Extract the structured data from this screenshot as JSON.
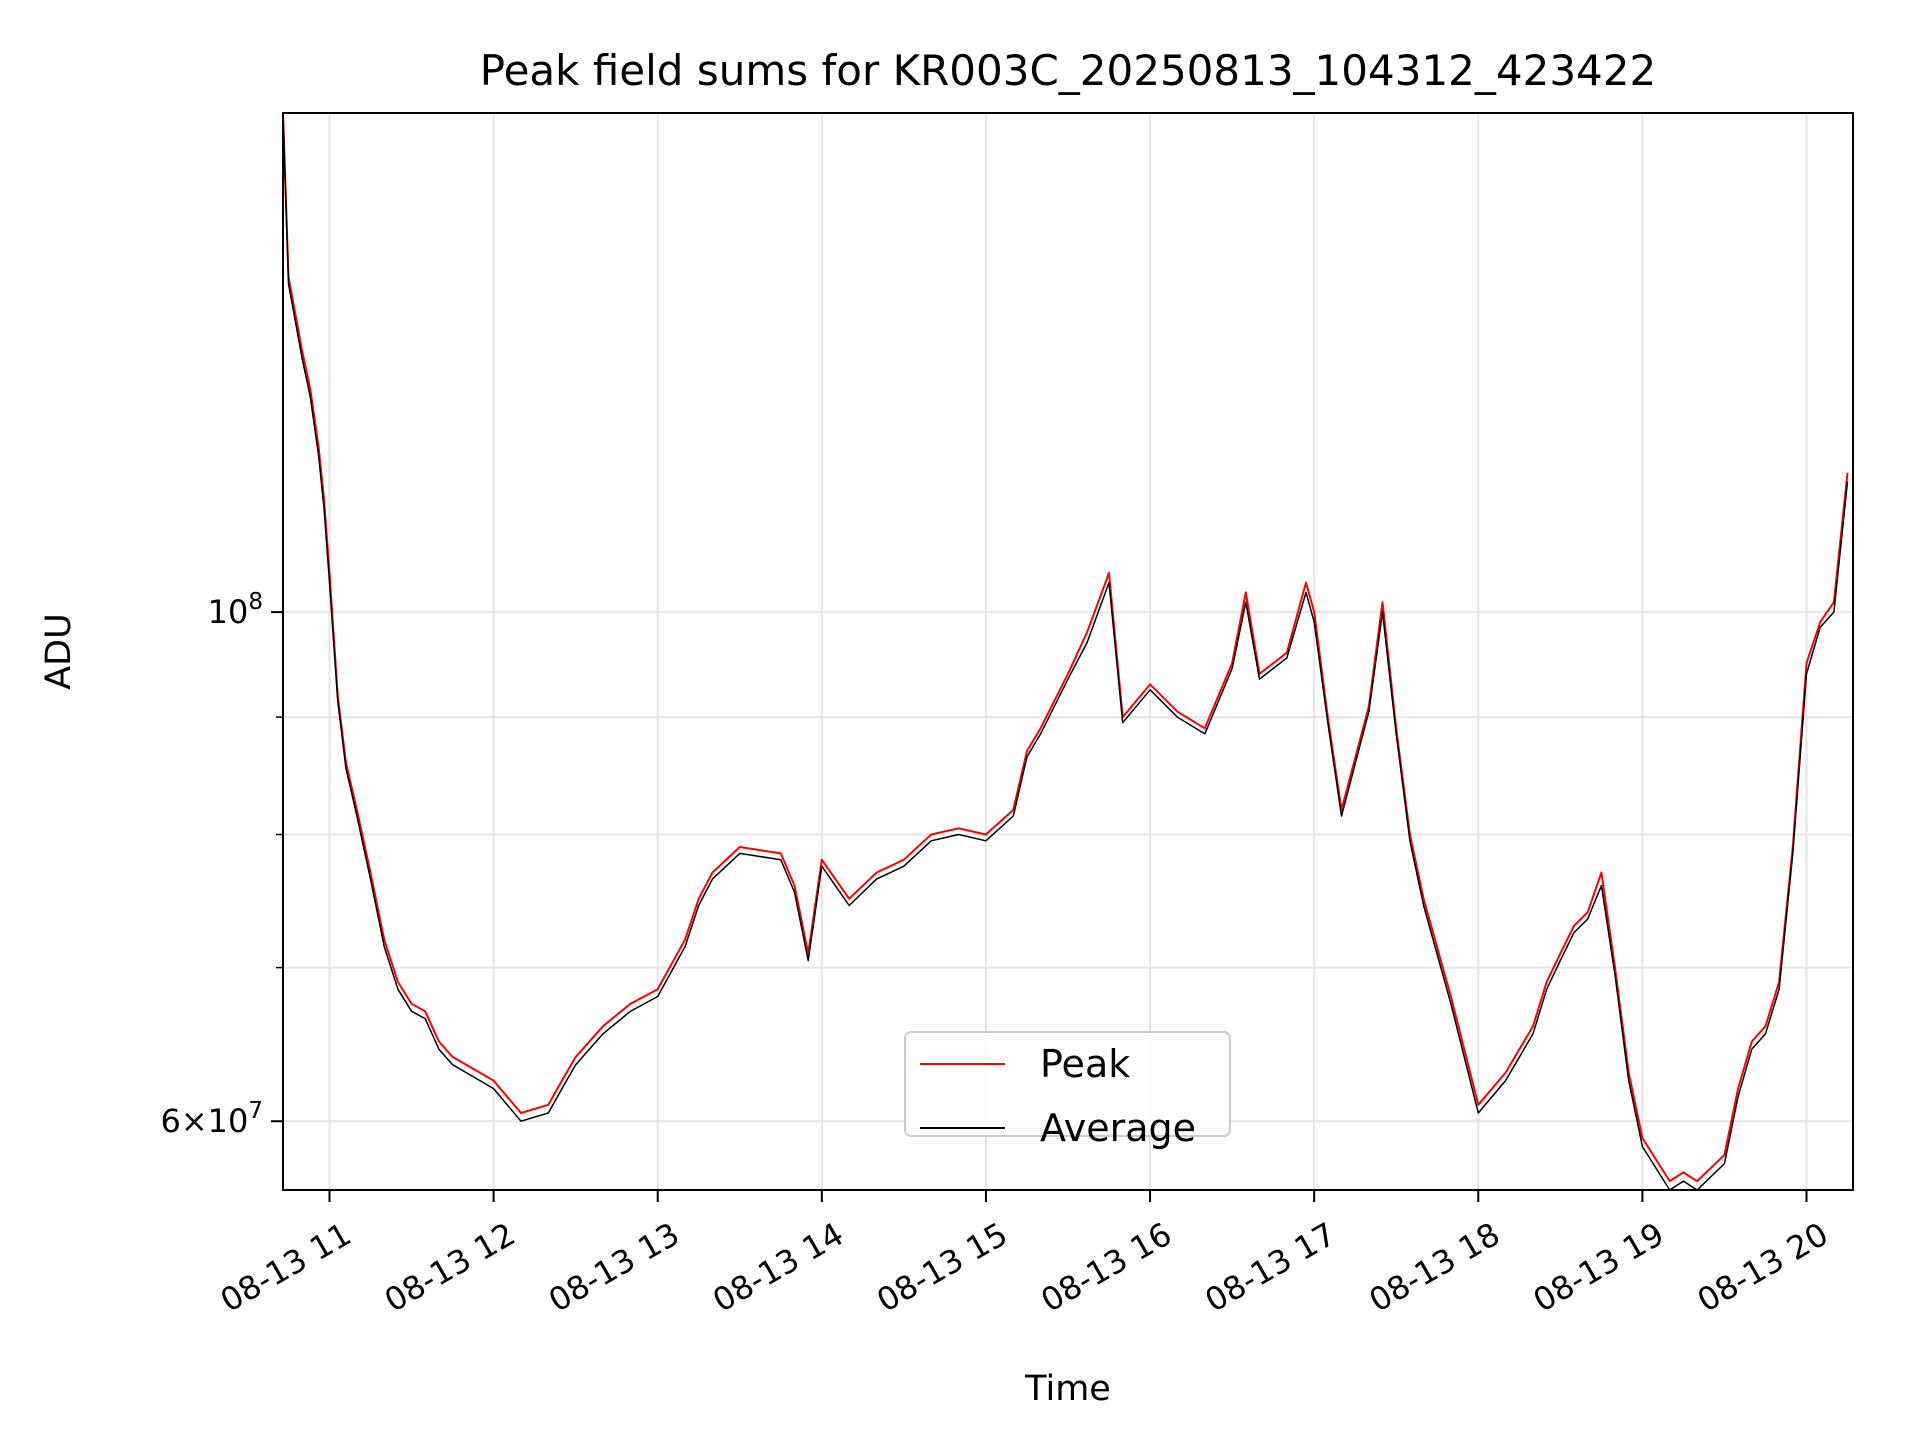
{
  "chart_data": {
    "type": "line",
    "title": "Peak field sums for KR003C_20250813_104312_423422",
    "xlabel": "Time",
    "ylabel": "ADU",
    "y_scale": "log",
    "xlim": [
      "2025-08-13 10:43",
      "2025-08-13 20:17"
    ],
    "ylim": [
      56000000,
      165000000
    ],
    "x_ticks": [
      "08-13 11",
      "08-13 12",
      "08-13 13",
      "08-13 14",
      "08-13 15",
      "08-13 16",
      "08-13 17",
      "08-13 18",
      "08-13 19",
      "08-13 20"
    ],
    "x_tick_values": [
      "2025-08-13 11:00",
      "2025-08-13 12:00",
      "2025-08-13 13:00",
      "2025-08-13 14:00",
      "2025-08-13 15:00",
      "2025-08-13 16:00",
      "2025-08-13 17:00",
      "2025-08-13 18:00",
      "2025-08-13 19:00",
      "2025-08-13 20:00"
    ],
    "y_major_ticks": [
      {
        "value": 100000000,
        "base": "10",
        "exp": "8",
        "mantissa": ""
      },
      {
        "value": 60000000,
        "base": "10",
        "exp": "7",
        "mantissa": "6"
      }
    ],
    "y_minor_ticks": [
      70000000,
      80000000,
      90000000
    ],
    "grid": true,
    "legend_position": "lower-center",
    "series": [
      {
        "name": "Peak",
        "color": "#ff0000",
        "x": [
          "2025-08-13 10:43",
          "2025-08-13 10:45",
          "2025-08-13 10:50",
          "2025-08-13 10:53",
          "2025-08-13 10:56",
          "2025-08-13 10:58",
          "2025-08-13 11:00",
          "2025-08-13 11:03",
          "2025-08-13 11:06",
          "2025-08-13 11:10",
          "2025-08-13 11:15",
          "2025-08-13 11:20",
          "2025-08-13 11:25",
          "2025-08-13 11:30",
          "2025-08-13 11:35",
          "2025-08-13 11:40",
          "2025-08-13 11:45",
          "2025-08-13 11:50",
          "2025-08-13 11:55",
          "2025-08-13 12:00",
          "2025-08-13 12:10",
          "2025-08-13 12:20",
          "2025-08-13 12:25",
          "2025-08-13 12:30",
          "2025-08-13 12:40",
          "2025-08-13 12:50",
          "2025-08-13 13:00",
          "2025-08-13 13:10",
          "2025-08-13 13:15",
          "2025-08-13 13:20",
          "2025-08-13 13:30",
          "2025-08-13 13:45",
          "2025-08-13 13:50",
          "2025-08-13 13:55",
          "2025-08-13 14:00",
          "2025-08-13 14:10",
          "2025-08-13 14:20",
          "2025-08-13 14:30",
          "2025-08-13 14:40",
          "2025-08-13 14:50",
          "2025-08-13 15:00",
          "2025-08-13 15:10",
          "2025-08-13 15:15",
          "2025-08-13 15:20",
          "2025-08-13 15:30",
          "2025-08-13 15:37",
          "2025-08-13 15:45",
          "2025-08-13 15:50",
          "2025-08-13 16:00",
          "2025-08-13 16:10",
          "2025-08-13 16:20",
          "2025-08-13 16:30",
          "2025-08-13 16:35",
          "2025-08-13 16:40",
          "2025-08-13 16:50",
          "2025-08-13 16:57",
          "2025-08-13 17:00",
          "2025-08-13 17:05",
          "2025-08-13 17:10",
          "2025-08-13 17:20",
          "2025-08-13 17:25",
          "2025-08-13 17:30",
          "2025-08-13 17:35",
          "2025-08-13 17:40",
          "2025-08-13 17:50",
          "2025-08-13 18:00",
          "2025-08-13 18:10",
          "2025-08-13 18:20",
          "2025-08-13 18:25",
          "2025-08-13 18:30",
          "2025-08-13 18:35",
          "2025-08-13 18:40",
          "2025-08-13 18:45",
          "2025-08-13 18:50",
          "2025-08-13 18:55",
          "2025-08-13 19:00",
          "2025-08-13 19:10",
          "2025-08-13 19:15",
          "2025-08-13 19:20",
          "2025-08-13 19:30",
          "2025-08-13 19:35",
          "2025-08-13 19:40",
          "2025-08-13 19:45",
          "2025-08-13 19:50",
          "2025-08-13 19:55",
          "2025-08-13 20:00",
          "2025-08-13 20:05",
          "2025-08-13 20:10",
          "2025-08-13 20:15"
        ],
        "y": [
          165000000,
          140000000,
          130000000,
          125000000,
          118000000,
          112000000,
          104000000,
          92000000,
          86000000,
          82000000,
          77000000,
          72000000,
          69000000,
          67500000,
          67000000,
          65000000,
          64000000,
          63500000,
          63000000,
          62500000,
          60500000,
          61000000,
          62500000,
          64000000,
          66000000,
          67500000,
          68500000,
          72000000,
          75000000,
          77000000,
          79000000,
          78500000,
          76000000,
          71000000,
          78000000,
          75000000,
          77000000,
          78000000,
          80000000,
          80500000,
          80000000,
          82000000,
          87000000,
          89000000,
          94000000,
          98000000,
          104000000,
          90000000,
          93000000,
          90500000,
          89000000,
          95000000,
          102000000,
          94000000,
          96000000,
          103000000,
          100000000,
          90000000,
          82000000,
          91000000,
          101000000,
          89000000,
          80000000,
          75000000,
          68000000,
          61000000,
          63000000,
          66000000,
          69000000,
          71000000,
          73000000,
          74000000,
          77000000,
          70000000,
          63000000,
          59000000,
          56500000,
          57000000,
          56500000,
          58000000,
          62000000,
          65000000,
          66000000,
          69000000,
          79000000,
          95000000,
          99000000,
          101000000,
          115000000
        ]
      },
      {
        "name": "Average",
        "color": "#000000",
        "x": [
          "2025-08-13 10:43",
          "2025-08-13 10:45",
          "2025-08-13 10:50",
          "2025-08-13 10:53",
          "2025-08-13 10:56",
          "2025-08-13 10:58",
          "2025-08-13 11:00",
          "2025-08-13 11:03",
          "2025-08-13 11:06",
          "2025-08-13 11:10",
          "2025-08-13 11:15",
          "2025-08-13 11:20",
          "2025-08-13 11:25",
          "2025-08-13 11:30",
          "2025-08-13 11:35",
          "2025-08-13 11:40",
          "2025-08-13 11:45",
          "2025-08-13 11:50",
          "2025-08-13 11:55",
          "2025-08-13 12:00",
          "2025-08-13 12:10",
          "2025-08-13 12:20",
          "2025-08-13 12:25",
          "2025-08-13 12:30",
          "2025-08-13 12:40",
          "2025-08-13 12:50",
          "2025-08-13 13:00",
          "2025-08-13 13:10",
          "2025-08-13 13:15",
          "2025-08-13 13:20",
          "2025-08-13 13:30",
          "2025-08-13 13:45",
          "2025-08-13 13:50",
          "2025-08-13 13:55",
          "2025-08-13 14:00",
          "2025-08-13 14:10",
          "2025-08-13 14:20",
          "2025-08-13 14:30",
          "2025-08-13 14:40",
          "2025-08-13 14:50",
          "2025-08-13 15:00",
          "2025-08-13 15:10",
          "2025-08-13 15:15",
          "2025-08-13 15:20",
          "2025-08-13 15:30",
          "2025-08-13 15:37",
          "2025-08-13 15:45",
          "2025-08-13 15:50",
          "2025-08-13 16:00",
          "2025-08-13 16:10",
          "2025-08-13 16:20",
          "2025-08-13 16:30",
          "2025-08-13 16:35",
          "2025-08-13 16:40",
          "2025-08-13 16:50",
          "2025-08-13 16:57",
          "2025-08-13 17:00",
          "2025-08-13 17:05",
          "2025-08-13 17:10",
          "2025-08-13 17:20",
          "2025-08-13 17:25",
          "2025-08-13 17:30",
          "2025-08-13 17:35",
          "2025-08-13 17:40",
          "2025-08-13 17:50",
          "2025-08-13 18:00",
          "2025-08-13 18:10",
          "2025-08-13 18:20",
          "2025-08-13 18:25",
          "2025-08-13 18:30",
          "2025-08-13 18:35",
          "2025-08-13 18:40",
          "2025-08-13 18:45",
          "2025-08-13 18:50",
          "2025-08-13 18:55",
          "2025-08-13 19:00",
          "2025-08-13 19:10",
          "2025-08-13 19:15",
          "2025-08-13 19:20",
          "2025-08-13 19:30",
          "2025-08-13 19:35",
          "2025-08-13 19:40",
          "2025-08-13 19:45",
          "2025-08-13 19:50",
          "2025-08-13 19:55",
          "2025-08-13 20:00",
          "2025-08-13 20:05",
          "2025-08-13 20:10",
          "2025-08-13 20:15"
        ],
        "y": [
          165000000,
          139000000,
          129000000,
          124000000,
          117000000,
          111000000,
          103000000,
          91500000,
          85500000,
          81500000,
          76500000,
          71500000,
          68500000,
          67000000,
          66500000,
          64500000,
          63500000,
          63000000,
          62500000,
          62000000,
          60000000,
          60500000,
          62000000,
          63500000,
          65500000,
          67000000,
          68000000,
          71500000,
          74500000,
          76500000,
          78500000,
          78000000,
          75500000,
          70500000,
          77500000,
          74500000,
          76500000,
          77500000,
          79500000,
          80000000,
          79500000,
          81500000,
          86500000,
          88500000,
          93500000,
          97000000,
          103000000,
          89500000,
          92500000,
          90000000,
          88500000,
          94500000,
          101000000,
          93500000,
          95500000,
          102000000,
          99000000,
          89500000,
          81500000,
          90500000,
          100000000,
          88500000,
          79500000,
          74500000,
          67500000,
          60500000,
          62500000,
          65500000,
          68500000,
          70500000,
          72500000,
          73500000,
          76000000,
          69500000,
          62500000,
          58500000,
          56000000,
          56500000,
          56000000,
          57500000,
          61500000,
          64500000,
          65500000,
          68500000,
          78500000,
          94000000,
          98500000,
          100000000,
          114000000
        ]
      }
    ]
  }
}
